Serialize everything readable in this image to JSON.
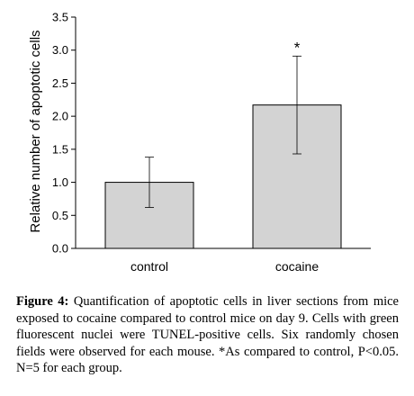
{
  "chart_data": {
    "type": "bar",
    "categories": [
      "control",
      "cocaine"
    ],
    "values": [
      1.0,
      2.17
    ],
    "error": [
      0.38,
      0.74
    ],
    "xlabel": "",
    "ylabel": "Relative number of apoptotic cells",
    "ylim": [
      0,
      3.5
    ],
    "yticks": [
      "0.0",
      "0.5",
      "1.0",
      "1.5",
      "2.0",
      "2.5",
      "3.0",
      "3.5"
    ],
    "annotations": [
      {
        "category": "cocaine",
        "text": "*"
      }
    ],
    "grid": false,
    "bar_color": "#d3d3d3"
  },
  "caption": {
    "label": "Figure 4:",
    "text": " Quantification of apoptotic cells in liver sections from mice exposed to cocaine compared to control mice on day 9. Cells with green fluorescent nuclei were TUNEL-positive cells. Six randomly chosen fields were observed for each mouse. *As compared to control, P<0.05. N=5 for each group."
  }
}
